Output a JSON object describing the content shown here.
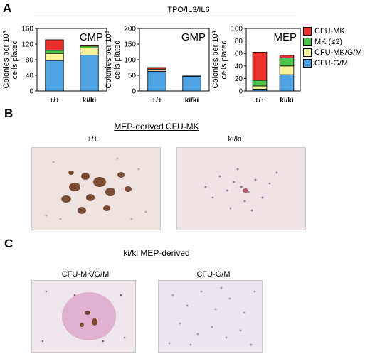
{
  "panels": {
    "a": "A",
    "b": "B",
    "c": "C"
  },
  "condition_label": "TPO/IL3/IL6",
  "y_label_lines_1e3": [
    "Colonies per 10",
    "cells plated"
  ],
  "y_label_lines_1e4": [
    "Colonies per 10",
    "cells plated"
  ],
  "legend": [
    {
      "label": "CFU-MK",
      "color": "#e8312b"
    },
    {
      "label": "MK (≤2)",
      "color": "#4ec34a"
    },
    {
      "label": "CFU-MK/G/M",
      "color": "#f7f39b"
    },
    {
      "label": "CFU-G/M",
      "color": "#4fa3e3"
    }
  ],
  "chart_data": [
    {
      "type": "bar",
      "title": "CMP",
      "categories": [
        "+/+",
        "ki/ki"
      ],
      "ylim": [
        0,
        160
      ],
      "yticks": [
        0,
        40,
        80,
        120,
        160
      ],
      "ylabel": "Colonies per 10^3 cells plated",
      "series": [
        {
          "name": "CFU-G/M",
          "values": [
            78,
            92
          ]
        },
        {
          "name": "CFU-MK/G/M",
          "values": [
            18,
            18
          ]
        },
        {
          "name": "MK (≤2)",
          "values": [
            8,
            5
          ]
        },
        {
          "name": "CFU-MK",
          "values": [
            27,
            2
          ]
        }
      ]
    },
    {
      "type": "bar",
      "title": "GMP",
      "categories": [
        "+/+",
        "ki/ki"
      ],
      "ylim": [
        0,
        200
      ],
      "yticks": [
        0,
        50,
        100,
        150,
        200
      ],
      "ylabel": "Colonies per 10^3 cells plated",
      "series": [
        {
          "name": "CFU-G/M",
          "values": [
            63,
            47
          ]
        },
        {
          "name": "CFU-MK/G/M",
          "values": [
            4,
            0
          ]
        },
        {
          "name": "MK (≤2)",
          "values": [
            3,
            1
          ]
        },
        {
          "name": "CFU-MK",
          "values": [
            5,
            0
          ]
        }
      ]
    },
    {
      "type": "bar",
      "title": "MEP",
      "categories": [
        "+/+",
        "ki/ki"
      ],
      "ylim": [
        0,
        100
      ],
      "yticks": [
        0,
        20,
        40,
        60,
        80,
        100
      ],
      "ylabel": "Colonies per 10^4 cells plated",
      "series": [
        {
          "name": "CFU-G/M",
          "values": [
            3,
            26
          ]
        },
        {
          "name": "CFU-MK/G/M",
          "values": [
            5,
            14
          ]
        },
        {
          "name": "MK (≤2)",
          "values": [
            9,
            13
          ]
        },
        {
          "name": "CFU-MK",
          "values": [
            45,
            4
          ]
        }
      ]
    }
  ],
  "panel_b": {
    "caption": "MEP-derived CFU-MK",
    "labels": [
      "+/+",
      "ki/ki"
    ]
  },
  "panel_c": {
    "caption": "ki/ki MEP-derived",
    "labels": [
      "CFU-MK/G/M",
      "CFU-G/M"
    ]
  }
}
